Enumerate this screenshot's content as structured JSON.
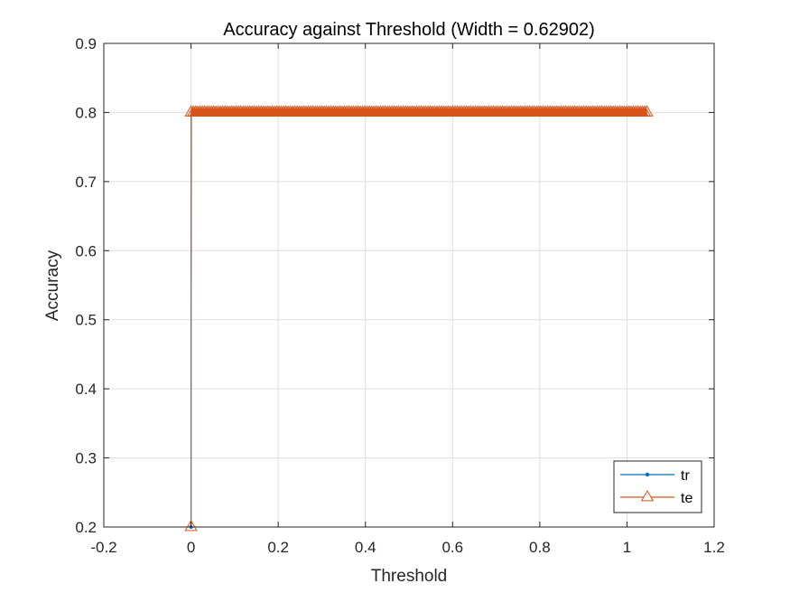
{
  "chart_data": {
    "type": "line",
    "title": "Accuracy against Threshold (Width = 0.62902)",
    "xlabel": "Threshold",
    "ylabel": "Accuracy",
    "xlim": [
      -0.2,
      1.2
    ],
    "ylim": [
      0.2,
      0.9
    ],
    "xticks": [
      "-0.2",
      "0",
      "0.2",
      "0.4",
      "0.6",
      "0.8",
      "1",
      "1.2"
    ],
    "yticks": [
      "0.2",
      "0.3",
      "0.4",
      "0.5",
      "0.6",
      "0.7",
      "0.8",
      "0.9"
    ],
    "grid": true,
    "legend_position": "bottom-right",
    "series": [
      {
        "name": "tr",
        "color": "#0072BD",
        "marker": "point",
        "x": [
          0,
          0,
          0.0005,
          0.001,
          0.1,
          0.2,
          0.3,
          0.4,
          0.5,
          0.6,
          0.7,
          0.8,
          0.9,
          1.0,
          1.046
        ],
        "y": [
          0.2,
          0.5,
          0.8,
          0.8,
          0.8,
          0.8,
          0.8,
          0.8,
          0.8,
          0.8,
          0.8,
          0.8,
          0.8,
          0.8,
          0.8
        ]
      },
      {
        "name": "te",
        "color": "#D95319",
        "marker": "triangle",
        "x": [
          0,
          0,
          0.0005,
          0.001,
          0.1,
          0.2,
          0.3,
          0.4,
          0.5,
          0.6,
          0.7,
          0.8,
          0.9,
          1.0,
          1.046
        ],
        "y": [
          0.2,
          0.5,
          0.8,
          0.8,
          0.8,
          0.8,
          0.8,
          0.8,
          0.8,
          0.8,
          0.8,
          0.8,
          0.8,
          0.8,
          0.8
        ]
      }
    ]
  }
}
